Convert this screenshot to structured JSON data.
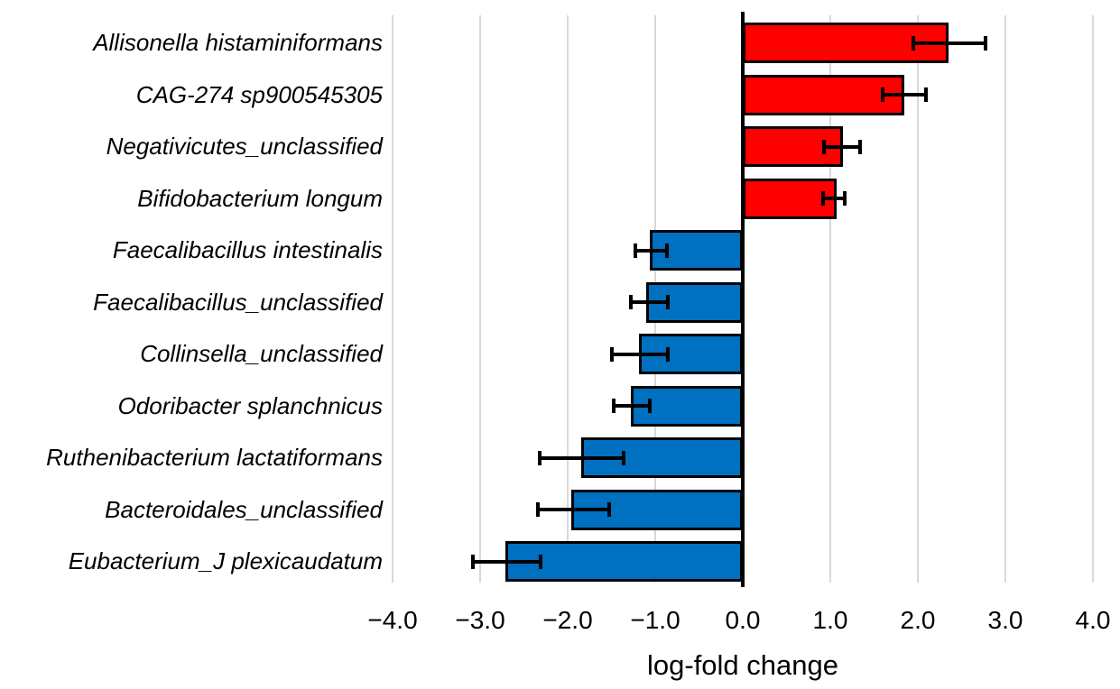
{
  "chart_data": {
    "type": "bar",
    "orientation": "horizontal",
    "title": "",
    "xlabel": "log-fold change",
    "ylabel": "",
    "xlim": [
      -4.0,
      4.0
    ],
    "grid": true,
    "legend": false,
    "xtick_values": [
      -4.0,
      -3.0,
      -2.0,
      -1.0,
      0.0,
      1.0,
      2.0,
      3.0,
      4.0
    ],
    "xtick_labels": [
      "−4.0",
      "−3.0",
      "−2.0",
      "−1.0",
      "0.0",
      "1.0",
      "2.0",
      "3.0",
      "4.0"
    ],
    "categories": [
      "Allisonella histaminiformans",
      "CAG-274 sp900545305",
      "Negativicutes_unclassified",
      "Bifidobacterium longum",
      "Faecalibacillus intestinalis",
      "Faecalibacillus_unclassified",
      "Collinsella_unclassified",
      "Odoribacter splanchnicus",
      "Ruthenibacterium lactatiformans",
      "Bacteroidales_unclassified",
      "Eubacterium_J plexicaudatum"
    ],
    "series": [
      {
        "name": "log-fold change",
        "values": [
          2.35,
          1.85,
          1.14,
          1.07,
          -1.06,
          -1.1,
          -1.19,
          -1.28,
          -1.85,
          -1.96,
          -2.71
        ],
        "error_low": [
          1.95,
          1.6,
          0.93,
          0.92,
          -1.23,
          -1.28,
          -1.49,
          -1.47,
          -2.32,
          -2.34,
          -3.08
        ],
        "error_high": [
          2.77,
          2.09,
          1.34,
          1.16,
          -0.87,
          -0.86,
          -0.86,
          -1.06,
          -1.36,
          -1.53,
          -2.31
        ]
      }
    ],
    "colors": {
      "positive_bar": "#FF0000",
      "negative_bar": "#0070C0",
      "bar_border": "#000000",
      "error_bar": "#000000",
      "gridline": "#D9D9D9",
      "axis_line": "#000000",
      "text": "#000000"
    }
  }
}
